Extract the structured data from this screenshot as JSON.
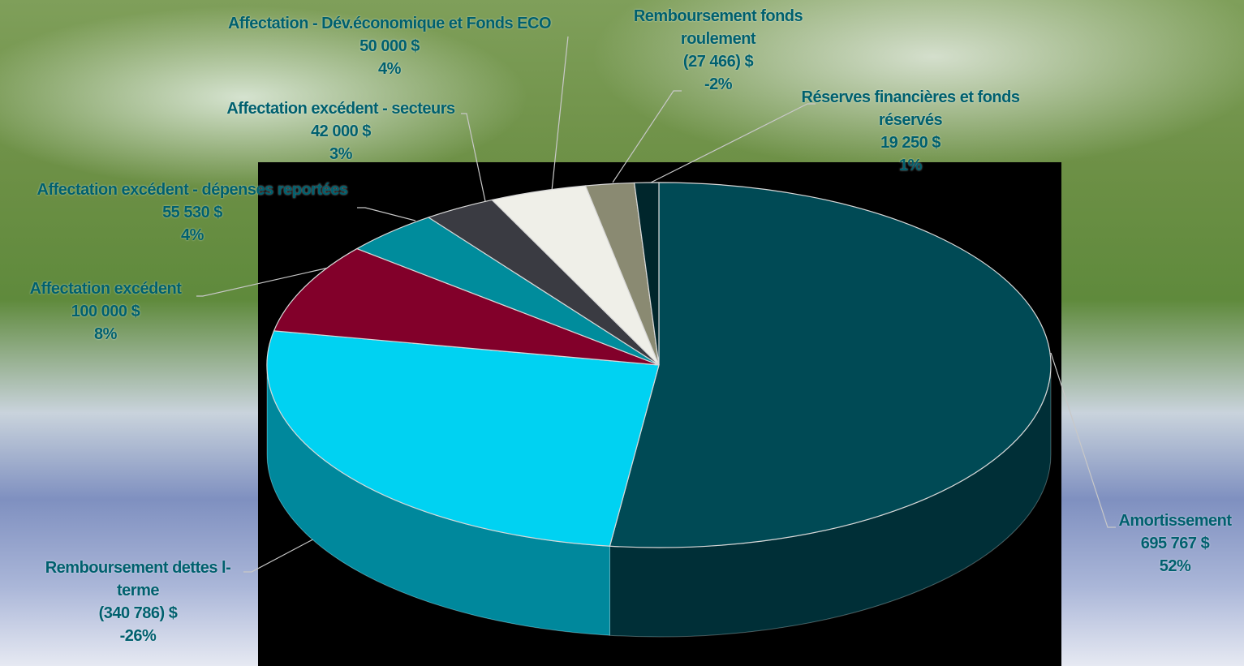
{
  "chart_data": {
    "type": "pie3d",
    "categories": [
      "Amortissement",
      "Remboursement dettes l-terme",
      "Affectation excédent",
      "Affectation excédent - dépenses reportées",
      "Affectation excédent - secteurs",
      "Affectation - Dév.économique et Fonds ECO",
      "Remboursement fonds roulement",
      "Réserves financières et fonds réservés"
    ],
    "values": [
      695767,
      -340786,
      100000,
      55530,
      42000,
      50000,
      -27466,
      19250
    ],
    "value_labels": [
      "695 767  $",
      "(340 786) $",
      "100 000  $",
      "55 530  $",
      "42 000  $",
      "50 000  $",
      "(27 466) $",
      "19 250  $"
    ],
    "percents": [
      52,
      -26,
      8,
      4,
      3,
      4,
      -2,
      1
    ],
    "percent_labels": [
      "52%",
      "-26%",
      "8%",
      "4%",
      "3%",
      "4%",
      "-2%",
      "1%"
    ],
    "colors": [
      "#004a55",
      "#00d2f2",
      "#82002a",
      "#008c9c",
      "#3a3b42",
      "#efefe8",
      "#8a8a72",
      "#00262c"
    ]
  }
}
